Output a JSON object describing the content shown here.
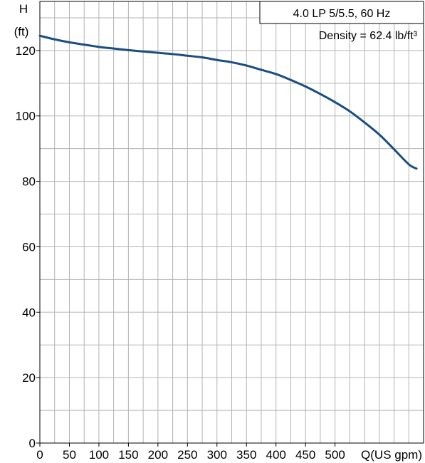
{
  "chart_data": {
    "type": "line",
    "title": "",
    "ylabel_line1": "H",
    "ylabel_line2": "(ft)",
    "xlabel": "Q(US gpm)",
    "legend": {
      "line1": "4.0 LP 5/5.5, 60 Hz",
      "line2": "Density = 62.4 lb/ft³",
      "placement": "top-right"
    },
    "xlim": [
      0,
      650
    ],
    "ylim": [
      0,
      135
    ],
    "grid": true,
    "x_ticks": [
      0,
      50,
      100,
      150,
      200,
      250,
      300,
      350,
      400,
      450,
      500
    ],
    "x_tick_labels": [
      "0",
      "50",
      "100",
      "150",
      "200",
      "250",
      "300",
      "350",
      "400",
      "450",
      "500"
    ],
    "y_ticks": [
      0,
      20,
      40,
      60,
      80,
      100,
      120
    ],
    "y_tick_labels": [
      "0",
      "20",
      "40",
      "60",
      "80",
      "100",
      "120"
    ],
    "series": [
      {
        "name": "",
        "color": "#1a4e80",
        "x": [
          0,
          25,
          50,
          75,
          100,
          125,
          150,
          175,
          200,
          225,
          250,
          275,
          300,
          325,
          350,
          375,
          400,
          425,
          450,
          475,
          500,
          525,
          550,
          575,
          600,
          625,
          638
        ],
        "y": [
          124.5,
          123.4,
          122.5,
          121.8,
          121.1,
          120.6,
          120.1,
          119.7,
          119.3,
          118.9,
          118.4,
          117.9,
          117.1,
          116.4,
          115.4,
          114.1,
          112.8,
          111.0,
          109.0,
          106.7,
          104.2,
          101.4,
          98.0,
          94.3,
          89.8,
          85.2,
          83.9
        ]
      }
    ]
  }
}
